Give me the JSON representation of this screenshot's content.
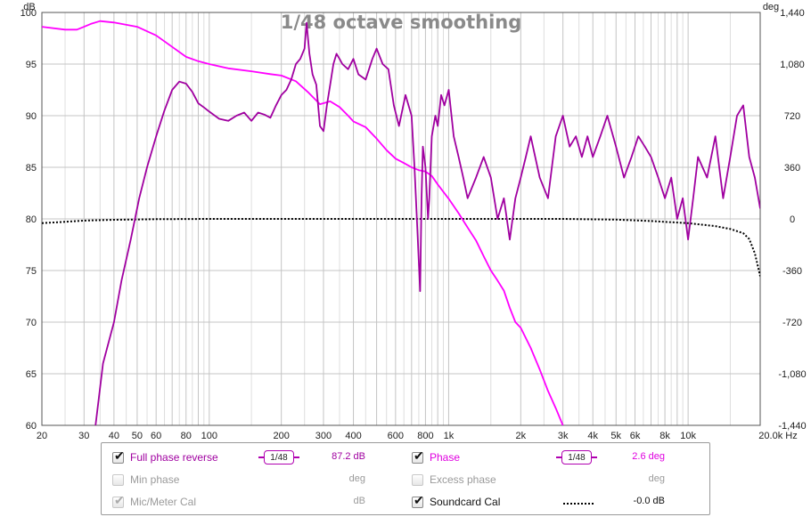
{
  "colors": {
    "spl": "#a000a0",
    "phase": "#ff00ff",
    "soundcard": "#000000",
    "grid": "#c4c4c4",
    "disabled": "#9a9a9a"
  },
  "chart_data": {
    "type": "line",
    "title": "1/48 octave smoothing",
    "left_unit": "dB",
    "right_unit": "deg",
    "x_scale": "log",
    "xlim": [
      20,
      20000
    ],
    "ylim_left": [
      60,
      100
    ],
    "ylim_right": [
      -1440,
      1440
    ],
    "grid": true,
    "x_ticks": [
      20,
      30,
      40,
      50,
      60,
      80,
      100,
      200,
      300,
      400,
      600,
      800,
      1000,
      2000,
      3000,
      4000,
      5000,
      6000,
      8000,
      10000,
      20000
    ],
    "x_tick_labels": [
      "20",
      "30",
      "40",
      "50",
      "60",
      "80",
      "100",
      "200",
      "300",
      "400",
      "600",
      "800",
      "1k",
      "2k",
      "3k",
      "4k",
      "5k",
      "6k",
      "8k",
      "10k",
      "20.0k Hz"
    ],
    "y_left_ticks": [
      100,
      95,
      90,
      85,
      80,
      75,
      70,
      65,
      60
    ],
    "y_left_tick_labels": [
      "100",
      "95",
      "90",
      "85",
      "80",
      "75",
      "70",
      "65",
      "60"
    ],
    "y_right_ticks": [
      1440,
      1080,
      720,
      360,
      0,
      -360,
      -720,
      -1080,
      -1440
    ],
    "y_right_tick_labels": [
      "1,440",
      "1,080",
      "720",
      "360",
      "0",
      "-360",
      "-720",
      "-1,080",
      "-1,440"
    ],
    "series": [
      {
        "name": "Full phase reverse",
        "axis": "left",
        "style": "solid",
        "x": [
          33.5,
          36,
          40,
          43,
          47,
          51,
          55,
          60,
          65,
          70,
          75,
          80,
          85,
          90,
          95,
          100,
          110,
          120,
          130,
          140,
          150,
          160,
          170,
          180,
          190,
          200,
          210,
          220,
          230,
          240,
          250,
          255,
          262,
          270,
          280,
          290,
          300,
          310,
          320,
          330,
          340,
          350,
          360,
          380,
          400,
          420,
          450,
          480,
          500,
          530,
          560,
          590,
          620,
          660,
          700,
          720,
          740,
          760,
          770,
          780,
          800,
          820,
          830,
          850,
          880,
          900,
          930,
          960,
          1000,
          1050,
          1100,
          1150,
          1200,
          1300,
          1400,
          1500,
          1600,
          1700,
          1800,
          1900,
          2000,
          2100,
          2200,
          2400,
          2600,
          2800,
          3000,
          3200,
          3400,
          3600,
          3800,
          4000,
          4300,
          4600,
          5000,
          5400,
          5800,
          6200,
          6600,
          7000,
          7500,
          8000,
          8500,
          9000,
          9500,
          10000,
          10500,
          11000,
          12000,
          13000,
          14000,
          15000,
          16000,
          17000,
          18000,
          19000,
          20000
        ],
        "values": [
          60,
          66,
          70,
          74,
          78,
          82,
          85,
          88,
          90.5,
          92.5,
          93.3,
          93.1,
          92.3,
          91.2,
          90.8,
          90.4,
          89.7,
          89.5,
          90.0,
          90.3,
          89.5,
          90.3,
          90.1,
          89.8,
          91.0,
          92.0,
          92.5,
          93.5,
          95.0,
          95.5,
          96.5,
          99.0,
          96.0,
          94.0,
          93.0,
          89.0,
          88.5,
          91.0,
          93.0,
          95.0,
          96.0,
          95.5,
          95.0,
          94.5,
          95.5,
          94.0,
          93.5,
          95.5,
          96.5,
          95.0,
          94.5,
          91.0,
          89.0,
          92.0,
          90.0,
          85.0,
          79.0,
          73.0,
          82.0,
          87.0,
          85.0,
          80.0,
          82.0,
          88.0,
          90.0,
          89.0,
          92.0,
          91.0,
          92.5,
          88.0,
          86.0,
          84.0,
          82.0,
          84.0,
          86.0,
          84.0,
          80.0,
          82.0,
          78.0,
          82.0,
          84.0,
          86.0,
          88.0,
          84.0,
          82.0,
          88.0,
          90.0,
          87.0,
          88.0,
          86.0,
          88.0,
          86.0,
          88.0,
          90.0,
          87.0,
          84.0,
          86.0,
          88.0,
          87.0,
          86.0,
          84.0,
          82.0,
          84.0,
          80.0,
          82.0,
          78.0,
          82.0,
          86.0,
          84.0,
          88.0,
          82.0,
          86.0,
          90.0,
          91.0,
          86.0,
          84.0,
          81.0
        ],
        "color": "#a000a0"
      },
      {
        "name": "Phase",
        "axis": "right",
        "style": "solid",
        "x": [
          20,
          25,
          28,
          30,
          32,
          35,
          40,
          50,
          60,
          70,
          80,
          90,
          100,
          120,
          150,
          180,
          200,
          230,
          260,
          290,
          320,
          350,
          380,
          400,
          450,
          500,
          550,
          600,
          650,
          700,
          750,
          800,
          850,
          900,
          1000,
          1100,
          1200,
          1300,
          1400,
          1500,
          1600,
          1700,
          1800,
          1900,
          2000,
          2200,
          2400,
          2600,
          2800,
          3000
        ],
        "values": [
          1340,
          1320,
          1320,
          1340,
          1360,
          1380,
          1370,
          1340,
          1280,
          1200,
          1130,
          1100,
          1080,
          1050,
          1030,
          1010,
          1000,
          960,
          880,
          800,
          820,
          780,
          720,
          680,
          640,
          560,
          480,
          420,
          390,
          360,
          340,
          330,
          300,
          240,
          140,
          40,
          -60,
          -150,
          -260,
          -360,
          -430,
          -500,
          -620,
          -720,
          -760,
          -900,
          -1050,
          -1200,
          -1320,
          -1440
        ],
        "color": "#ff00ff"
      },
      {
        "name": "Soundcard Cal",
        "axis": "right",
        "style": "dotted",
        "x": [
          20,
          25,
          30,
          40,
          60,
          100,
          200,
          500,
          1000,
          2000,
          3000,
          5000,
          7000,
          10000,
          13000,
          15000,
          17000,
          18000,
          19000,
          20000
        ],
        "values": [
          -30,
          -20,
          -12,
          -6,
          -2,
          0,
          0,
          0,
          0,
          0,
          0,
          -5,
          -15,
          -30,
          -50,
          -70,
          -100,
          -140,
          -240,
          -400
        ],
        "color": "#000000"
      }
    ]
  },
  "legend": {
    "rows": [
      {
        "left": {
          "label": "Full phase reverse",
          "checked": true,
          "enabled": true,
          "smoothing": "1/48",
          "value": "87.2 dB"
        },
        "right": {
          "label": "Phase",
          "checked": true,
          "enabled": true,
          "smoothing": "1/48",
          "value": "2.6 deg"
        }
      },
      {
        "left": {
          "label": "Min phase",
          "checked": false,
          "enabled": false,
          "value": "deg"
        },
        "right": {
          "label": "Excess phase",
          "checked": false,
          "enabled": false,
          "value": "deg"
        }
      },
      {
        "left": {
          "label": "Mic/Meter Cal",
          "checked": true,
          "enabled": false,
          "value": "dB"
        },
        "right": {
          "label": "Soundcard Cal",
          "checked": true,
          "enabled": true,
          "value": "-0.0 dB"
        }
      }
    ]
  }
}
